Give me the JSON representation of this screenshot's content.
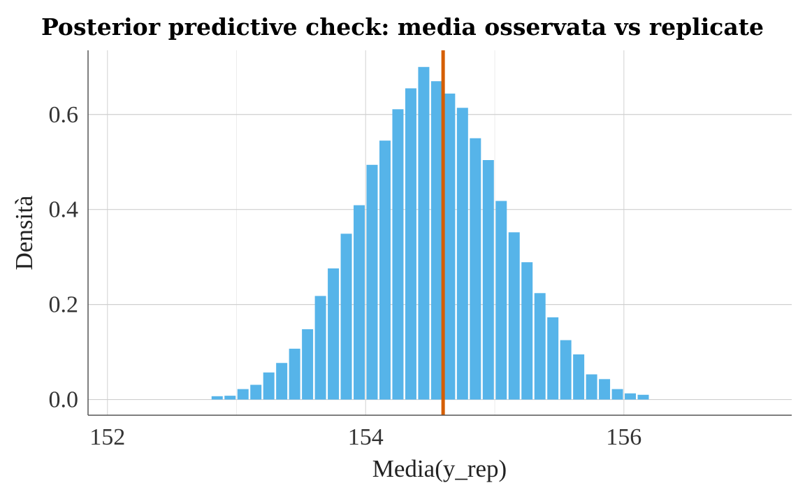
{
  "chart_data": {
    "type": "bar",
    "title": "Posterior predictive check: media osservata vs replicate",
    "xlabel": "Media(y_rep)",
    "ylabel": "Densità",
    "xlim": [
      151.85,
      157.3
    ],
    "ylim": [
      -0.033,
      0.735
    ],
    "xticks": [
      152,
      154,
      156
    ],
    "xtick_labels": [
      "152",
      "154",
      "156"
    ],
    "yticks": [
      0.0,
      0.2,
      0.4,
      0.6
    ],
    "ytick_labels": [
      "0.0",
      "0.2",
      "0.4",
      "0.6"
    ],
    "grid": true,
    "legend": "none",
    "bar_color": "#56B4E9",
    "observed_color": "#D55E00",
    "observed_mean": 154.6,
    "bin_width": 0.1,
    "bins": [
      {
        "x": 152.8,
        "y": 0.007
      },
      {
        "x": 152.9,
        "y": 0.008
      },
      {
        "x": 153.0,
        "y": 0.022
      },
      {
        "x": 153.1,
        "y": 0.031
      },
      {
        "x": 153.2,
        "y": 0.057
      },
      {
        "x": 153.3,
        "y": 0.077
      },
      {
        "x": 153.4,
        "y": 0.107
      },
      {
        "x": 153.5,
        "y": 0.148
      },
      {
        "x": 153.6,
        "y": 0.218
      },
      {
        "x": 153.7,
        "y": 0.276
      },
      {
        "x": 153.8,
        "y": 0.349
      },
      {
        "x": 153.9,
        "y": 0.409
      },
      {
        "x": 154.0,
        "y": 0.494
      },
      {
        "x": 154.1,
        "y": 0.545
      },
      {
        "x": 154.2,
        "y": 0.611
      },
      {
        "x": 154.3,
        "y": 0.655
      },
      {
        "x": 154.4,
        "y": 0.7
      },
      {
        "x": 154.5,
        "y": 0.67
      },
      {
        "x": 154.6,
        "y": 0.644
      },
      {
        "x": 154.7,
        "y": 0.614
      },
      {
        "x": 154.8,
        "y": 0.55
      },
      {
        "x": 154.9,
        "y": 0.504
      },
      {
        "x": 155.0,
        "y": 0.418
      },
      {
        "x": 155.1,
        "y": 0.352
      },
      {
        "x": 155.2,
        "y": 0.289
      },
      {
        "x": 155.3,
        "y": 0.224
      },
      {
        "x": 155.4,
        "y": 0.173
      },
      {
        "x": 155.5,
        "y": 0.125
      },
      {
        "x": 155.6,
        "y": 0.095
      },
      {
        "x": 155.7,
        "y": 0.053
      },
      {
        "x": 155.8,
        "y": 0.043
      },
      {
        "x": 155.9,
        "y": 0.022
      },
      {
        "x": 156.0,
        "y": 0.013
      },
      {
        "x": 156.1,
        "y": 0.01
      }
    ]
  }
}
